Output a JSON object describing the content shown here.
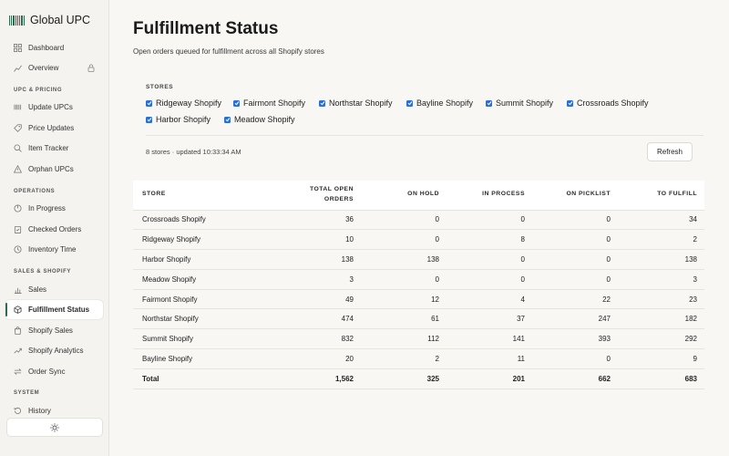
{
  "app": {
    "title": "Global UPC"
  },
  "sidebar": {
    "top_items": [
      {
        "label": "Dashboard",
        "icon": "grid-icon"
      },
      {
        "label": "Overview",
        "icon": "chart-icon",
        "locked": true
      }
    ],
    "sections": [
      {
        "title": "UPC & PRICING",
        "items": [
          {
            "label": "Update UPCs",
            "icon": "barcode-icon"
          },
          {
            "label": "Price Updates",
            "icon": "tag-icon"
          },
          {
            "label": "Item Tracker",
            "icon": "search-icon"
          },
          {
            "label": "Orphan UPCs",
            "icon": "warning-icon"
          }
        ]
      },
      {
        "title": "OPERATIONS",
        "items": [
          {
            "label": "In Progress",
            "icon": "progress-icon"
          },
          {
            "label": "Checked Orders",
            "icon": "clipboard-icon"
          },
          {
            "label": "Inventory Time",
            "icon": "clock-icon"
          }
        ]
      },
      {
        "title": "SALES & SHOPIFY",
        "items": [
          {
            "label": "Sales",
            "icon": "bar-chart-icon"
          },
          {
            "label": "Fulfillment Status",
            "icon": "box-icon",
            "active": true
          },
          {
            "label": "Shopify Sales",
            "icon": "bag-icon"
          },
          {
            "label": "Shopify Analytics",
            "icon": "trend-icon"
          },
          {
            "label": "Order Sync",
            "icon": "sync-icon"
          }
        ]
      },
      {
        "title": "SYSTEM",
        "items": [
          {
            "label": "History",
            "icon": "history-icon"
          }
        ]
      }
    ],
    "theme_toggle_icon": "sun-icon"
  },
  "page": {
    "title": "Fulfillment Status",
    "subtitle": "Open orders queued for fulfillment across all Shopify stores"
  },
  "filters": {
    "label": "STORES",
    "stores": [
      {
        "name": "Ridgeway Shopify",
        "checked": true
      },
      {
        "name": "Fairmont Shopify",
        "checked": true
      },
      {
        "name": "Northstar Shopify",
        "checked": true
      },
      {
        "name": "Bayline Shopify",
        "checked": true
      },
      {
        "name": "Summit Shopify",
        "checked": true
      },
      {
        "name": "Crossroads Shopify",
        "checked": true
      },
      {
        "name": "Harbor Shopify",
        "checked": true
      },
      {
        "name": "Meadow Shopify",
        "checked": true
      }
    ],
    "status": "8 stores · updated 10:33:34 AM",
    "refresh_label": "Refresh"
  },
  "table": {
    "headers": [
      "STORE",
      "TOTAL OPEN ORDERS",
      "ON HOLD",
      "IN PROCESS",
      "ON PICKLIST",
      "TO FULFILL"
    ],
    "rows": [
      [
        "Crossroads Shopify",
        "36",
        "0",
        "0",
        "0",
        "34"
      ],
      [
        "Ridgeway Shopify",
        "10",
        "0",
        "8",
        "0",
        "2"
      ],
      [
        "Harbor Shopify",
        "138",
        "138",
        "0",
        "0",
        "138"
      ],
      [
        "Meadow Shopify",
        "3",
        "0",
        "0",
        "0",
        "3"
      ],
      [
        "Fairmont Shopify",
        "49",
        "12",
        "4",
        "22",
        "23"
      ],
      [
        "Northstar Shopify",
        "474",
        "61",
        "37",
        "247",
        "182"
      ],
      [
        "Summit Shopify",
        "832",
        "112",
        "141",
        "393",
        "292"
      ],
      [
        "Bayline Shopify",
        "20",
        "2",
        "11",
        "0",
        "9"
      ]
    ],
    "total": [
      "Total",
      "1,562",
      "325",
      "201",
      "662",
      "683"
    ]
  },
  "colors": {
    "accent": "#2f6b4f",
    "checkbox": "#2b6fd6"
  }
}
